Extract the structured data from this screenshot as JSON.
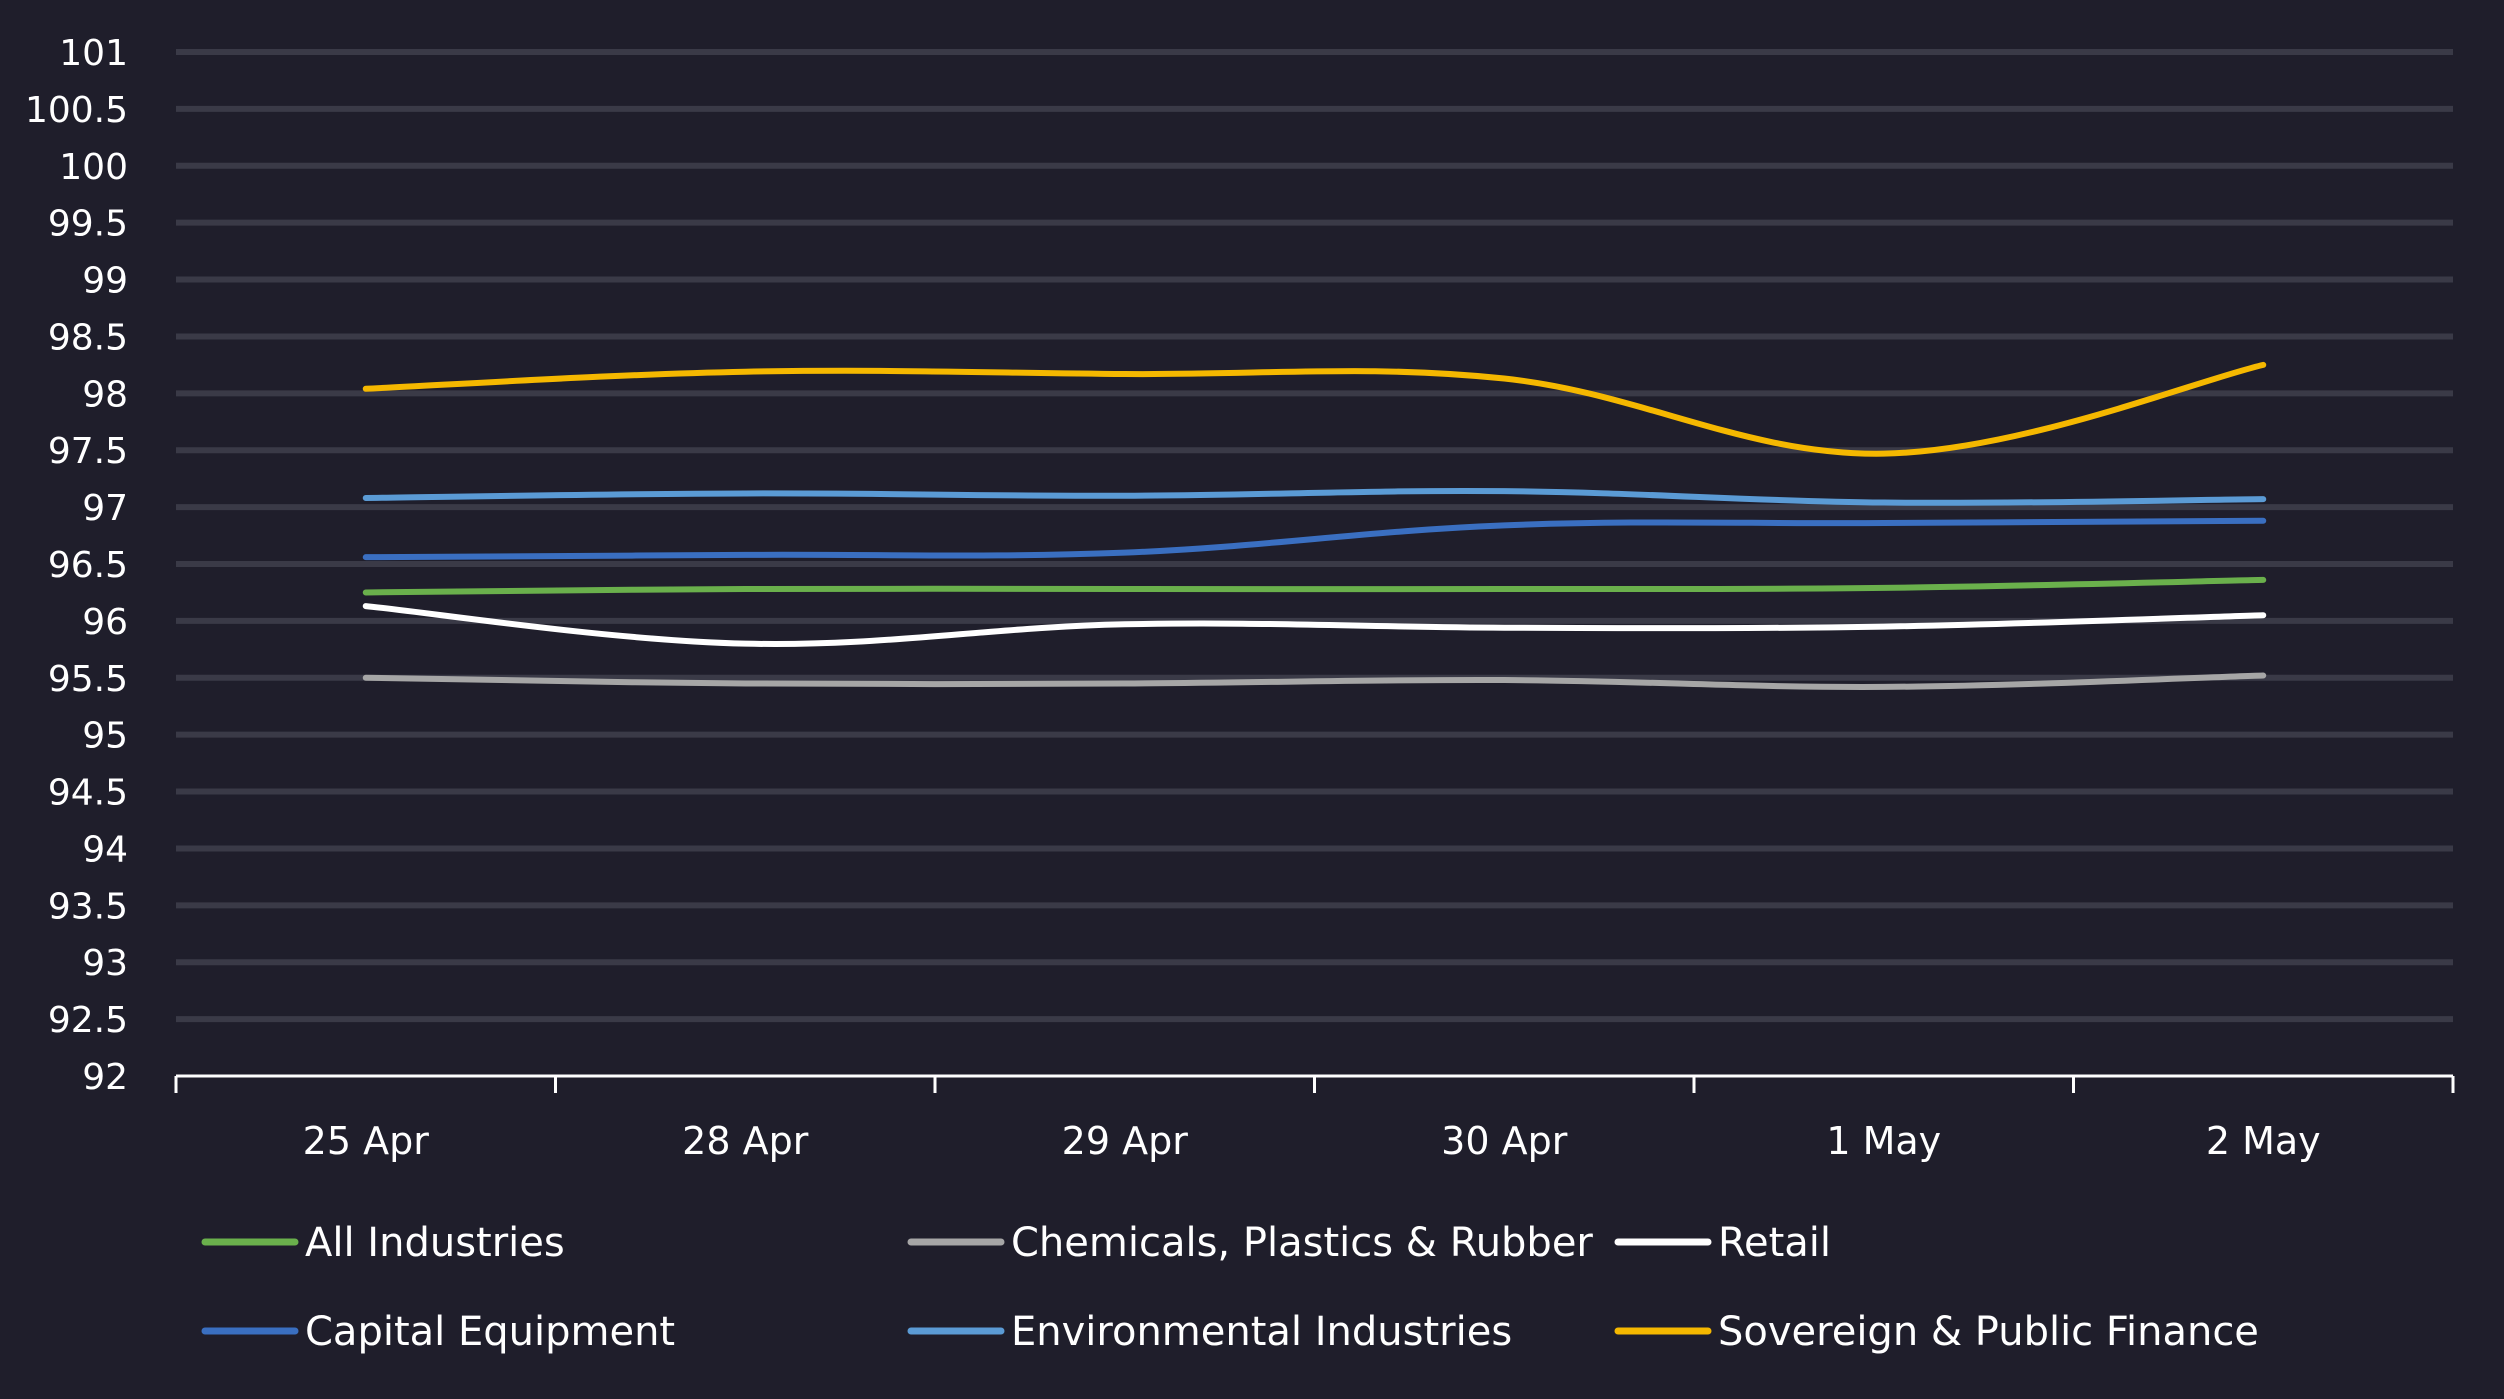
{
  "chart_data": {
    "type": "line",
    "title": "",
    "xlabel": "",
    "ylabel": "",
    "categories": [
      "25 Apr",
      "28 Apr",
      "29 Apr",
      "30 Apr",
      "1 May",
      "2 May"
    ],
    "ylim": [
      92,
      101
    ],
    "yticks": [
      "92",
      "92.5",
      "93",
      "93.5",
      "94",
      "94.5",
      "95",
      "95.5",
      "96",
      "96.5",
      "97",
      "97.5",
      "98",
      "98.5",
      "99",
      "99.5",
      "100",
      "100.5",
      "101"
    ],
    "grid": true,
    "legend_position": "bottom",
    "series": [
      {
        "name": "All Industries",
        "color": "#6ab04c",
        "values": [
          96.25,
          96.28,
          96.28,
          96.28,
          96.29,
          96.36
        ]
      },
      {
        "name": "Chemicals, Plastics & Rubber",
        "color": "#a6a6a6",
        "values": [
          95.5,
          95.45,
          95.45,
          95.48,
          95.42,
          95.52
        ]
      },
      {
        "name": "Retail",
        "color": "#ffffff",
        "values": [
          96.13,
          95.8,
          95.97,
          95.94,
          95.95,
          96.05
        ]
      },
      {
        "name": "Capital Equipment",
        "color": "#3a6fc1",
        "values": [
          96.56,
          96.58,
          96.6,
          96.84,
          96.86,
          96.88
        ]
      },
      {
        "name": "Environmental Industries",
        "color": "#5b9bd5",
        "values": [
          97.08,
          97.12,
          97.1,
          97.14,
          97.04,
          97.07
        ]
      },
      {
        "name": "Sovereign & Public Finance",
        "color": "#f5b800",
        "values": [
          98.04,
          98.19,
          98.17,
          98.13,
          97.47,
          98.25
        ]
      }
    ]
  }
}
